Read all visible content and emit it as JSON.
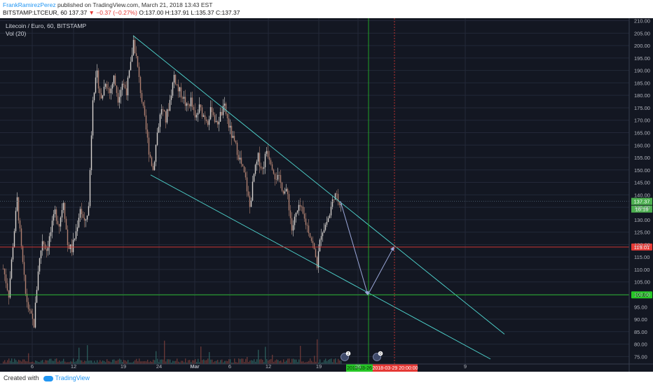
{
  "header": {
    "author": "FrankRamirezPerez",
    "published": "published on TradingView.com, March 21, 2018 13:43 EST",
    "symbol": "BITSTAMP:LTCEUR, 60",
    "last": "137.37",
    "change": "−0.37 (−0.27%)",
    "ohlc": "O:137.00 H:137.91 L:135.37 C:137.37"
  },
  "legend": {
    "title": "Litecoin / Euro, 60, BITSTAMP",
    "volume": "Vol (20)"
  },
  "footer": {
    "created_with": "Created with",
    "brand": "TradingView"
  },
  "colors": {
    "background": "#131722",
    "grid": "#232838",
    "candle_up": "#d9d4d0",
    "candle_down": "#b08070",
    "trendline": "#4fd6cf",
    "projection": "#9aa6d8",
    "red_level": "#e53935",
    "green_level": "#26c626"
  },
  "chart_data": {
    "type": "candlestick",
    "title": "Litecoin / Euro, 60, BITSTAMP",
    "ylim": [
      72,
      211
    ],
    "y_ticks": [
      75,
      80,
      85,
      90,
      95,
      100,
      105,
      110,
      115,
      120,
      125,
      130,
      135,
      140,
      145,
      150,
      155,
      160,
      165,
      170,
      175,
      180,
      185,
      190,
      195,
      200,
      205,
      210
    ],
    "x_ticks": [
      "6",
      "12",
      "19",
      "24",
      "Mar",
      "6",
      "12",
      "19",
      "26",
      "9"
    ],
    "price_path": [
      [
        0,
        115
      ],
      [
        6,
        108
      ],
      [
        12,
        100
      ],
      [
        18,
        120
      ],
      [
        24,
        138
      ],
      [
        30,
        118
      ],
      [
        36,
        100
      ],
      [
        42,
        92
      ],
      [
        48,
        88
      ],
      [
        54,
        110
      ],
      [
        60,
        122
      ],
      [
        66,
        118
      ],
      [
        72,
        125
      ],
      [
        78,
        133
      ],
      [
        84,
        128
      ],
      [
        90,
        138
      ],
      [
        96,
        120
      ],
      [
        102,
        118
      ],
      [
        108,
        125
      ],
      [
        114,
        135
      ],
      [
        120,
        128
      ],
      [
        126,
        135
      ],
      [
        132,
        180
      ],
      [
        138,
        188
      ],
      [
        144,
        178
      ],
      [
        150,
        186
      ],
      [
        156,
        181
      ],
      [
        162,
        187
      ],
      [
        168,
        179
      ],
      [
        174,
        185
      ],
      [
        180,
        182
      ],
      [
        186,
        192
      ],
      [
        190,
        202
      ],
      [
        194,
        195
      ],
      [
        200,
        182
      ],
      [
        206,
        170
      ],
      [
        212,
        158
      ],
      [
        218,
        150
      ],
      [
        224,
        165
      ],
      [
        230,
        175
      ],
      [
        236,
        170
      ],
      [
        242,
        178
      ],
      [
        248,
        188
      ],
      [
        254,
        182
      ],
      [
        260,
        180
      ],
      [
        266,
        175
      ],
      [
        272,
        178
      ],
      [
        278,
        170
      ],
      [
        284,
        175
      ],
      [
        290,
        172
      ],
      [
        296,
        170
      ],
      [
        302,
        175
      ],
      [
        308,
        168
      ],
      [
        314,
        172
      ],
      [
        320,
        175
      ],
      [
        326,
        168
      ],
      [
        332,
        162
      ],
      [
        338,
        158
      ],
      [
        344,
        152
      ],
      [
        350,
        146
      ],
      [
        356,
        135
      ],
      [
        362,
        148
      ],
      [
        368,
        155
      ],
      [
        374,
        150
      ],
      [
        380,
        158
      ],
      [
        386,
        154
      ],
      [
        392,
        148
      ],
      [
        398,
        146
      ],
      [
        404,
        142
      ],
      [
        410,
        140
      ],
      [
        416,
        126
      ],
      [
        422,
        132
      ],
      [
        428,
        135
      ],
      [
        434,
        130
      ],
      [
        440,
        126
      ],
      [
        446,
        120
      ],
      [
        452,
        112
      ],
      [
        458,
        125
      ],
      [
        464,
        128
      ],
      [
        470,
        132
      ],
      [
        476,
        140
      ],
      [
        482,
        138
      ],
      [
        486,
        137.37
      ]
    ],
    "last_price": 137.37,
    "countdown": "16:18",
    "levels": [
      {
        "label": "119.01",
        "value": 119.01,
        "color": "red"
      },
      {
        "label": "99.80",
        "value": 99.8,
        "color": "green"
      }
    ],
    "date_labels": [
      {
        "label": "2018-03-26",
        "color": "green"
      },
      {
        "label": "2018-03-29 20:00:00",
        "color": "red"
      }
    ],
    "event_markers": [
      "2",
      "0"
    ],
    "wedge_lines": [
      {
        "from": [
          190,
          204
        ],
        "to": [
          720,
          84
        ]
      },
      {
        "from": [
          215,
          148
        ],
        "to": [
          700,
          74
        ]
      }
    ],
    "projection_arrows": [
      {
        "from": [
          486,
          137.37
        ],
        "to": [
          525,
          99.8
        ]
      },
      {
        "from": [
          525,
          99.8
        ],
        "to": [
          562,
          119.01
        ]
      }
    ],
    "volume_series": "Vol (20)"
  }
}
